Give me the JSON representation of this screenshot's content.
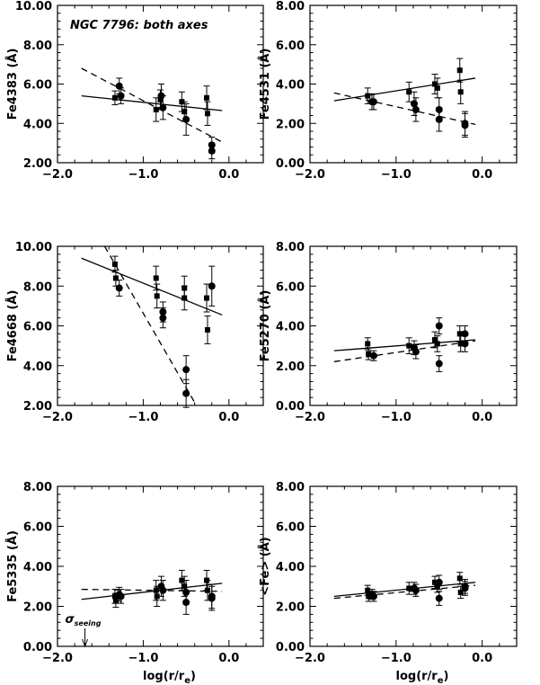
{
  "chart_data": [
    {
      "type": "scatter",
      "ylabel": "Fe4383 (Å)",
      "xlim": [
        -2.0,
        0.4
      ],
      "ylim": [
        2.0,
        10.0
      ],
      "yticks": [
        "2.00",
        "4.00",
        "6.00",
        "8.00",
        "10.00"
      ],
      "xticks": [
        "−2.0",
        "−1.0",
        "0.0"
      ],
      "annotation": "NGC 7796: both axes",
      "squares": [
        {
          "x": -1.33,
          "y": 5.3,
          "err": 0.35
        },
        {
          "x": -0.85,
          "y": 4.7,
          "err": 0.6
        },
        {
          "x": -0.8,
          "y": 5.2,
          "err": 0.5
        },
        {
          "x": -0.55,
          "y": 5.1,
          "err": 0.5
        },
        {
          "x": -0.52,
          "y": 4.6,
          "err": 0.5
        },
        {
          "x": -0.26,
          "y": 5.3,
          "err": 0.6
        },
        {
          "x": -0.25,
          "y": 4.5,
          "err": 0.6
        }
      ],
      "circles": [
        {
          "x": -1.28,
          "y": 5.9,
          "err": 0.4
        },
        {
          "x": -1.26,
          "y": 5.4,
          "err": 0.4
        },
        {
          "x": -0.79,
          "y": 5.4,
          "err": 0.6
        },
        {
          "x": -0.77,
          "y": 4.8,
          "err": 0.6
        },
        {
          "x": -0.5,
          "y": 4.2,
          "err": 0.8
        },
        {
          "x": -0.2,
          "y": 2.9,
          "err": 0.4
        },
        {
          "x": -0.2,
          "y": 2.6,
          "err": 0.4
        }
      ],
      "solid_line": [
        [
          -1.72,
          5.4
        ],
        [
          -0.08,
          4.65
        ]
      ],
      "dashed_line": [
        [
          -1.72,
          6.8
        ],
        [
          -0.08,
          3.05
        ]
      ]
    },
    {
      "type": "scatter",
      "ylabel": "Fe4531 (Å)",
      "xlim": [
        -2.0,
        0.4
      ],
      "ylim": [
        0.0,
        8.0
      ],
      "yticks": [
        "0.00",
        "2.00",
        "4.00",
        "6.00",
        "8.00"
      ],
      "xticks": [
        "−2.0",
        "−1.0",
        "0.0"
      ],
      "squares": [
        {
          "x": -1.33,
          "y": 3.4,
          "err": 0.4
        },
        {
          "x": -0.85,
          "y": 3.6,
          "err": 0.5
        },
        {
          "x": -0.55,
          "y": 4.0,
          "err": 0.5
        },
        {
          "x": -0.52,
          "y": 3.8,
          "err": 0.5
        },
        {
          "x": -0.26,
          "y": 4.7,
          "err": 0.6
        },
        {
          "x": -0.25,
          "y": 3.6,
          "err": 0.6
        }
      ],
      "circles": [
        {
          "x": -1.28,
          "y": 3.1,
          "err": 0.4
        },
        {
          "x": -1.26,
          "y": 3.1,
          "err": 0.4
        },
        {
          "x": -0.79,
          "y": 3.0,
          "err": 0.6
        },
        {
          "x": -0.77,
          "y": 2.7,
          "err": 0.6
        },
        {
          "x": -0.5,
          "y": 2.7,
          "err": 0.6
        },
        {
          "x": -0.5,
          "y": 2.2,
          "err": 0.6
        },
        {
          "x": -0.2,
          "y": 2.0,
          "err": 0.6
        },
        {
          "x": -0.2,
          "y": 1.9,
          "err": 0.6
        }
      ],
      "solid_line": [
        [
          -1.72,
          3.15
        ],
        [
          -0.08,
          4.3
        ]
      ],
      "dashed_line": [
        [
          -1.72,
          3.55
        ],
        [
          -0.08,
          1.95
        ]
      ]
    },
    {
      "type": "scatter",
      "ylabel": "Fe4668 (Å)",
      "xlim": [
        -2.0,
        0.4
      ],
      "ylim": [
        2.0,
        10.0
      ],
      "yticks": [
        "2.00",
        "4.00",
        "6.00",
        "8.00",
        "10.00"
      ],
      "xticks": [
        "−2.0",
        "−1.0",
        "0.0"
      ],
      "squares": [
        {
          "x": -1.33,
          "y": 9.1,
          "err": 0.4
        },
        {
          "x": -1.32,
          "y": 8.4,
          "err": 0.4
        },
        {
          "x": -0.85,
          "y": 8.4,
          "err": 0.6
        },
        {
          "x": -0.84,
          "y": 7.5,
          "err": 0.6
        },
        {
          "x": -0.52,
          "y": 7.9,
          "err": 0.6
        },
        {
          "x": -0.52,
          "y": 7.4,
          "err": 0.6
        },
        {
          "x": -0.26,
          "y": 7.4,
          "err": 0.7
        },
        {
          "x": -0.25,
          "y": 5.8,
          "err": 0.7
        }
      ],
      "circles": [
        {
          "x": -1.28,
          "y": 7.9,
          "err": 0.4
        },
        {
          "x": -0.77,
          "y": 6.7,
          "err": 0.5
        },
        {
          "x": -0.77,
          "y": 6.4,
          "err": 0.5
        },
        {
          "x": -0.5,
          "y": 3.8,
          "err": 0.7
        },
        {
          "x": -0.5,
          "y": 2.6,
          "err": 0.7
        },
        {
          "x": -0.2,
          "y": 8.0,
          "err": 1.0
        }
      ],
      "solid_line": [
        [
          -1.72,
          9.4
        ],
        [
          -0.08,
          6.55
        ]
      ],
      "dashed_line": [
        [
          -1.45,
          10.0
        ],
        [
          -0.38,
          2.0
        ]
      ]
    },
    {
      "type": "scatter",
      "ylabel": "Fe5270 (Å)",
      "xlim": [
        -2.0,
        0.4
      ],
      "ylim": [
        0.0,
        8.0
      ],
      "yticks": [
        "0.00",
        "2.00",
        "4.00",
        "6.00",
        "8.00"
      ],
      "xticks": [
        "−2.0",
        "−1.0",
        "0.0"
      ],
      "squares": [
        {
          "x": -1.33,
          "y": 3.1,
          "err": 0.3
        },
        {
          "x": -1.32,
          "y": 2.6,
          "err": 0.3
        },
        {
          "x": -0.85,
          "y": 3.0,
          "err": 0.4
        },
        {
          "x": -0.55,
          "y": 3.3,
          "err": 0.4
        },
        {
          "x": -0.52,
          "y": 3.1,
          "err": 0.4
        },
        {
          "x": -0.26,
          "y": 3.6,
          "err": 0.4
        },
        {
          "x": -0.25,
          "y": 3.1,
          "err": 0.4
        }
      ],
      "circles": [
        {
          "x": -1.26,
          "y": 2.5,
          "err": 0.25
        },
        {
          "x": -0.79,
          "y": 2.9,
          "err": 0.35
        },
        {
          "x": -0.77,
          "y": 2.7,
          "err": 0.35
        },
        {
          "x": -0.5,
          "y": 4.0,
          "err": 0.4
        },
        {
          "x": -0.5,
          "y": 2.1,
          "err": 0.4
        },
        {
          "x": -0.2,
          "y": 3.6,
          "err": 0.4
        },
        {
          "x": -0.2,
          "y": 3.1,
          "err": 0.4
        }
      ],
      "solid_line": [
        [
          -1.72,
          2.75
        ],
        [
          -0.08,
          3.3
        ]
      ],
      "dashed_line": [
        [
          -1.72,
          2.2
        ],
        [
          -0.08,
          3.25
        ]
      ]
    },
    {
      "type": "scatter",
      "ylabel": "Fe5335 (Å)",
      "xlabel": "log(r/r",
      "xlabel_sub": "e",
      "xlabel_end": ")",
      "xlim": [
        -2.0,
        0.4
      ],
      "ylim": [
        0.0,
        8.0
      ],
      "yticks": [
        "0.00",
        "2.00",
        "4.00",
        "6.00",
        "8.00"
      ],
      "xticks": [
        "−2.0",
        "−1.0",
        "0.0"
      ],
      "seeing_label": "σ",
      "seeing_sub": "seeing",
      "seeing_x": -1.68,
      "squares": [
        {
          "x": -1.33,
          "y": 2.5,
          "err": 0.35
        },
        {
          "x": -1.32,
          "y": 2.3,
          "err": 0.35
        },
        {
          "x": -0.85,
          "y": 2.8,
          "err": 0.5
        },
        {
          "x": -0.84,
          "y": 2.5,
          "err": 0.5
        },
        {
          "x": -0.55,
          "y": 3.3,
          "err": 0.5
        },
        {
          "x": -0.52,
          "y": 3.0,
          "err": 0.5
        },
        {
          "x": -0.26,
          "y": 3.3,
          "err": 0.5
        },
        {
          "x": -0.25,
          "y": 2.8,
          "err": 0.5
        }
      ],
      "circles": [
        {
          "x": -1.28,
          "y": 2.6,
          "err": 0.35
        },
        {
          "x": -1.26,
          "y": 2.5,
          "err": 0.35
        },
        {
          "x": -0.79,
          "y": 3.0,
          "err": 0.5
        },
        {
          "x": -0.77,
          "y": 2.8,
          "err": 0.5
        },
        {
          "x": -0.5,
          "y": 2.7,
          "err": 0.6
        },
        {
          "x": -0.5,
          "y": 2.2,
          "err": 0.6
        },
        {
          "x": -0.2,
          "y": 2.5,
          "err": 0.6
        },
        {
          "x": -0.2,
          "y": 2.4,
          "err": 0.6
        }
      ],
      "solid_line": [
        [
          -1.72,
          2.35
        ],
        [
          -0.08,
          3.15
        ]
      ],
      "dashed_line": [
        [
          -1.72,
          2.85
        ],
        [
          -0.08,
          2.75
        ]
      ]
    },
    {
      "type": "scatter",
      "ylabel": "<Fe> (Å)",
      "xlabel": "log(r/r",
      "xlabel_sub": "e",
      "xlabel_end": ")",
      "xlim": [
        -2.0,
        0.4
      ],
      "ylim": [
        0.0,
        8.0
      ],
      "yticks": [
        "0.00",
        "2.00",
        "4.00",
        "6.00",
        "8.00"
      ],
      "xticks": [
        "−2.0",
        "−1.0",
        "0.0"
      ],
      "squares": [
        {
          "x": -1.33,
          "y": 2.8,
          "err": 0.25
        },
        {
          "x": -1.32,
          "y": 2.5,
          "err": 0.25
        },
        {
          "x": -0.85,
          "y": 2.9,
          "err": 0.3
        },
        {
          "x": -0.55,
          "y": 3.2,
          "err": 0.3
        },
        {
          "x": -0.52,
          "y": 3.0,
          "err": 0.3
        },
        {
          "x": -0.26,
          "y": 3.4,
          "err": 0.3
        },
        {
          "x": -0.25,
          "y": 2.7,
          "err": 0.3
        }
      ],
      "circles": [
        {
          "x": -1.28,
          "y": 2.6,
          "err": 0.25
        },
        {
          "x": -1.26,
          "y": 2.5,
          "err": 0.25
        },
        {
          "x": -0.79,
          "y": 2.9,
          "err": 0.3
        },
        {
          "x": -0.77,
          "y": 2.8,
          "err": 0.3
        },
        {
          "x": -0.5,
          "y": 3.2,
          "err": 0.35
        },
        {
          "x": -0.5,
          "y": 2.4,
          "err": 0.35
        },
        {
          "x": -0.2,
          "y": 3.0,
          "err": 0.35
        },
        {
          "x": -0.2,
          "y": 2.9,
          "err": 0.35
        }
      ],
      "solid_line": [
        [
          -1.72,
          2.5
        ],
        [
          -0.08,
          3.2
        ]
      ],
      "dashed_line": [
        [
          -1.72,
          2.4
        ],
        [
          -0.08,
          3.05
        ]
      ]
    }
  ]
}
